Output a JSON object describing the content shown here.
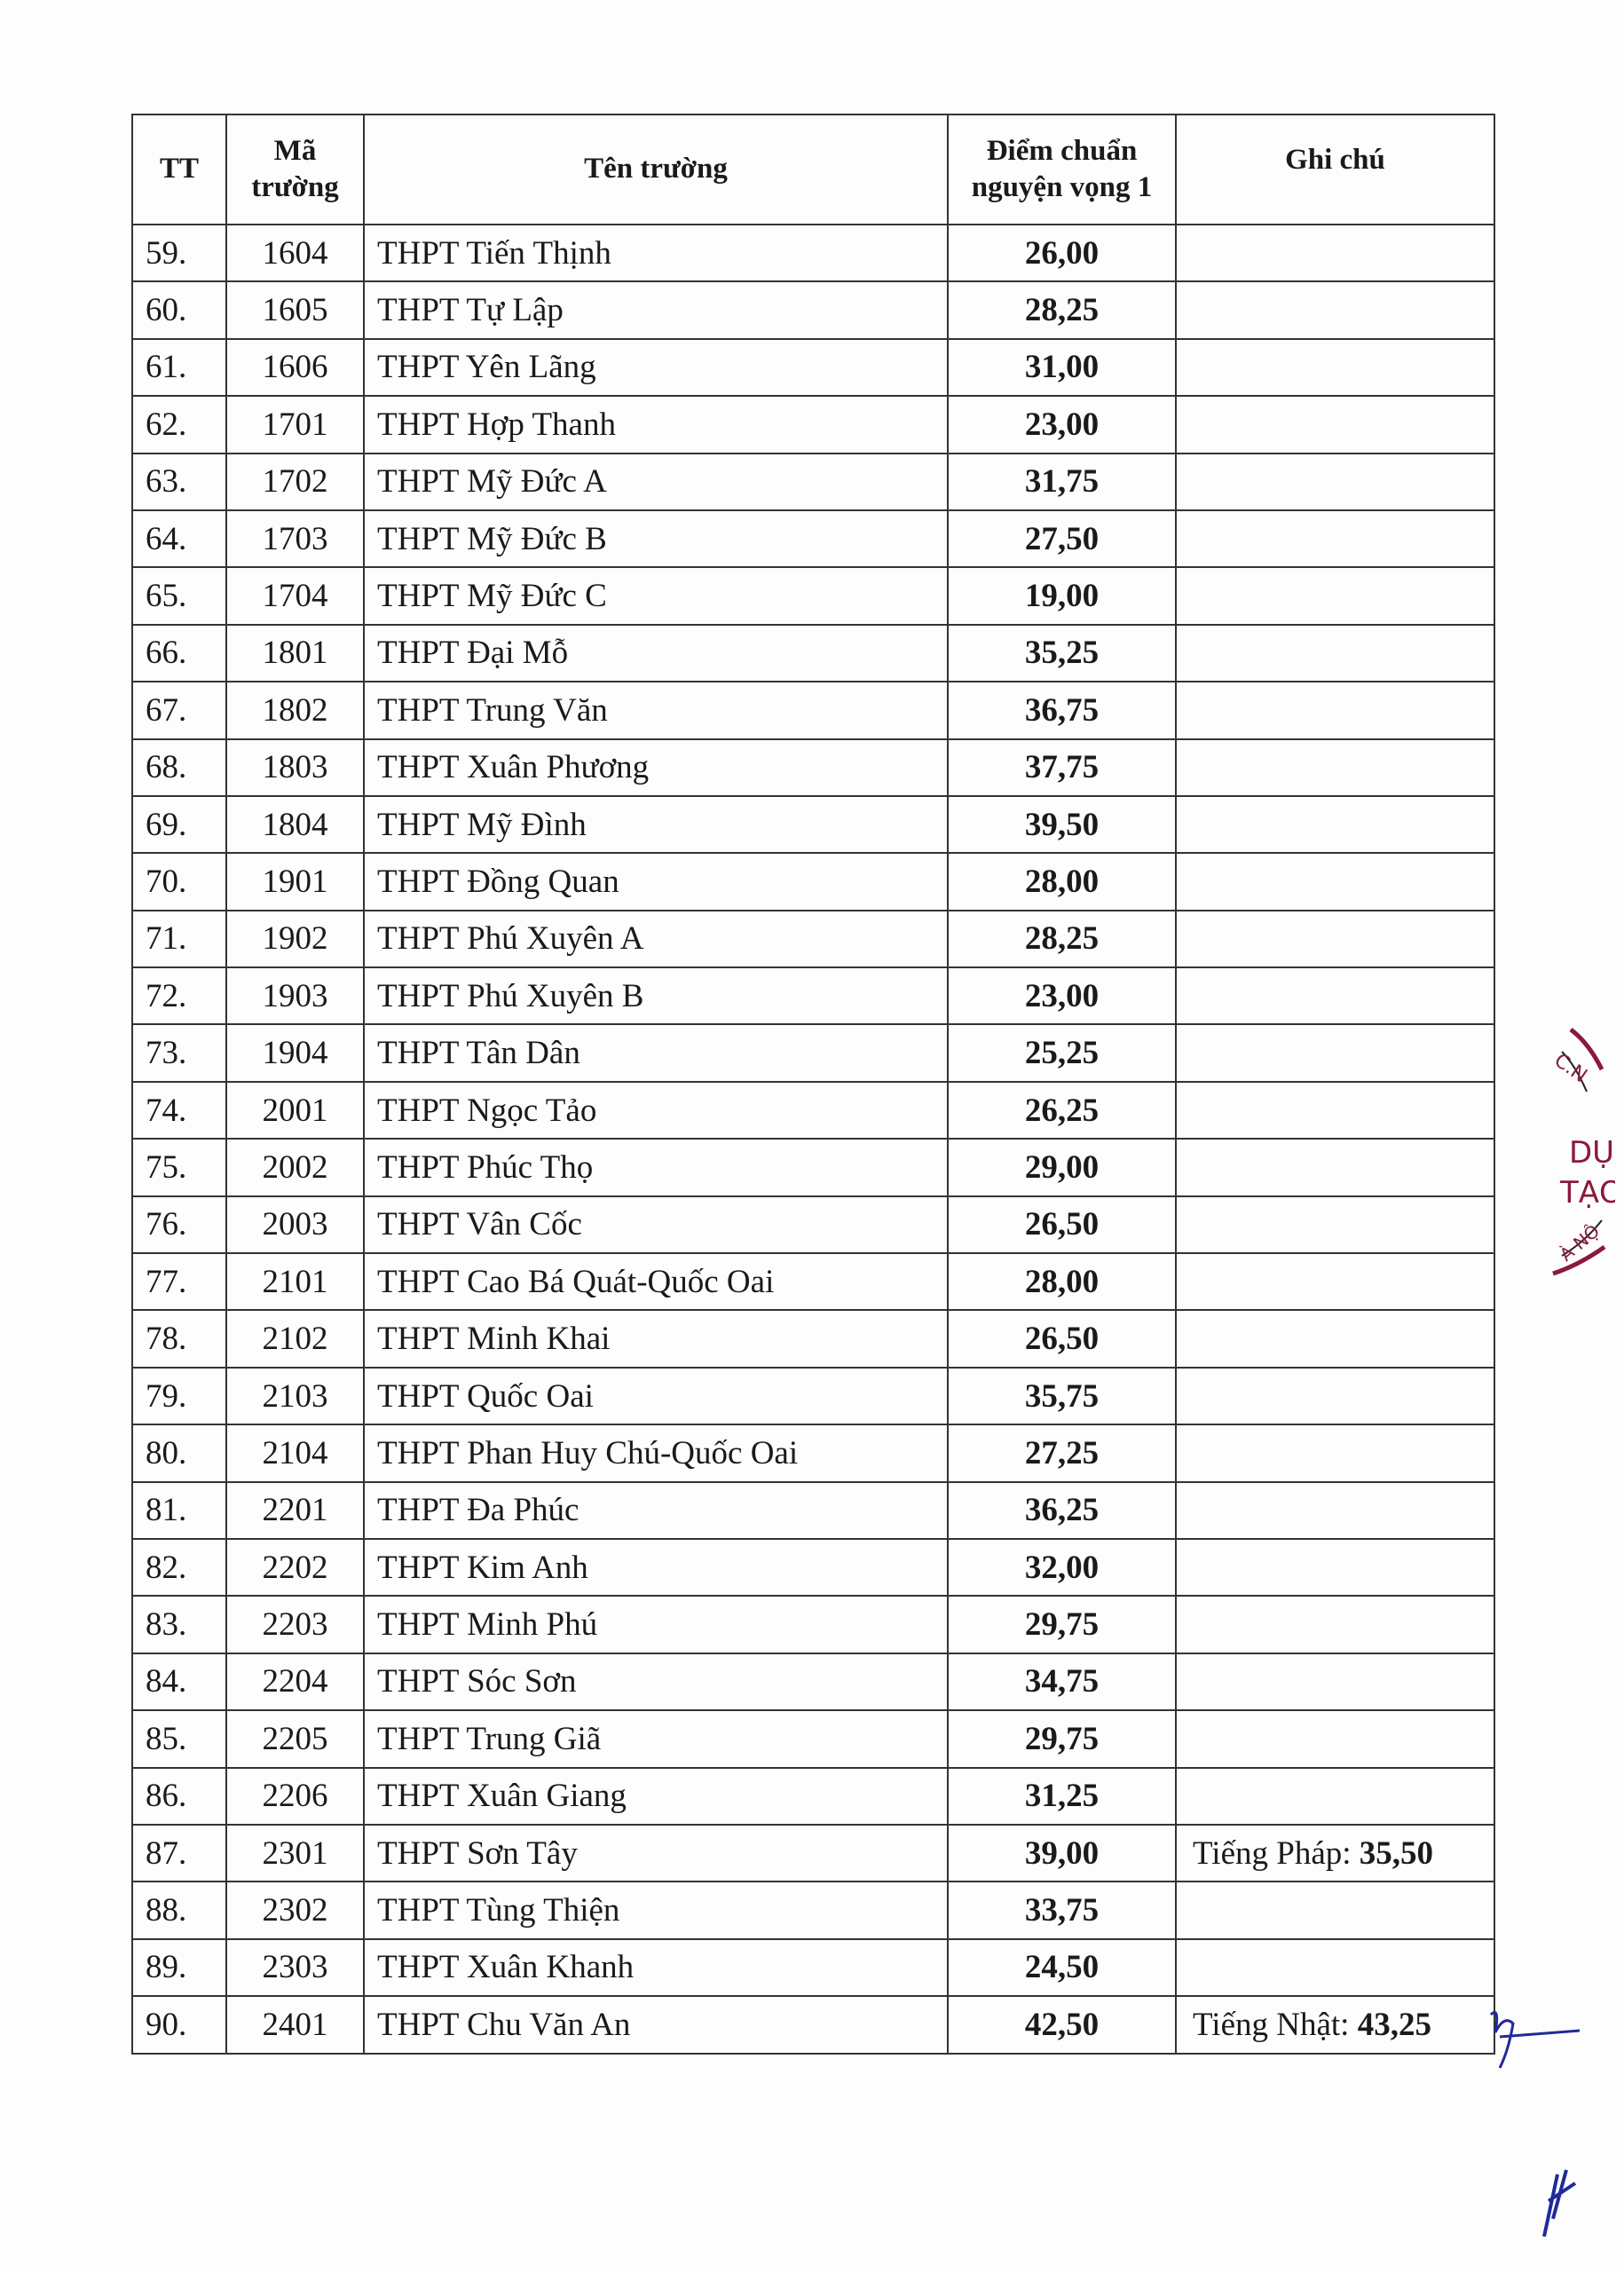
{
  "headers": {
    "tt": "TT",
    "ma": "Mã trường",
    "ten": "Tên trường",
    "diem": "Điểm chuẩn nguyện vọng 1",
    "ghi": "Ghi chú"
  },
  "rows": [
    {
      "tt": "59.",
      "ma": "1604",
      "ten": "THPT Tiến Thịnh",
      "diem": "26,00",
      "ghi": "",
      "ghi_val": ""
    },
    {
      "tt": "60.",
      "ma": "1605",
      "ten": "THPT Tự Lập",
      "diem": "28,25",
      "ghi": "",
      "ghi_val": ""
    },
    {
      "tt": "61.",
      "ma": "1606",
      "ten": "THPT Yên Lãng",
      "diem": "31,00",
      "ghi": "",
      "ghi_val": ""
    },
    {
      "tt": "62.",
      "ma": "1701",
      "ten": "THPT Hợp Thanh",
      "diem": "23,00",
      "ghi": "",
      "ghi_val": ""
    },
    {
      "tt": "63.",
      "ma": "1702",
      "ten": "THPT Mỹ Đức A",
      "diem": "31,75",
      "ghi": "",
      "ghi_val": ""
    },
    {
      "tt": "64.",
      "ma": "1703",
      "ten": "THPT Mỹ Đức B",
      "diem": "27,50",
      "ghi": "",
      "ghi_val": ""
    },
    {
      "tt": "65.",
      "ma": "1704",
      "ten": "THPT Mỹ Đức C",
      "diem": "19,00",
      "ghi": "",
      "ghi_val": ""
    },
    {
      "tt": "66.",
      "ma": "1801",
      "ten": "THPT Đại Mỗ",
      "diem": "35,25",
      "ghi": "",
      "ghi_val": ""
    },
    {
      "tt": "67.",
      "ma": "1802",
      "ten": "THPT Trung Văn",
      "diem": "36,75",
      "ghi": "",
      "ghi_val": ""
    },
    {
      "tt": "68.",
      "ma": "1803",
      "ten": "THPT Xuân Phương",
      "diem": "37,75",
      "ghi": "",
      "ghi_val": ""
    },
    {
      "tt": "69.",
      "ma": "1804",
      "ten": "THPT Mỹ Đình",
      "diem": "39,50",
      "ghi": "",
      "ghi_val": ""
    },
    {
      "tt": "70.",
      "ma": "1901",
      "ten": "THPT Đồng Quan",
      "diem": "28,00",
      "ghi": "",
      "ghi_val": ""
    },
    {
      "tt": "71.",
      "ma": "1902",
      "ten": "THPT Phú Xuyên A",
      "diem": "28,25",
      "ghi": "",
      "ghi_val": ""
    },
    {
      "tt": "72.",
      "ma": "1903",
      "ten": "THPT Phú Xuyên B",
      "diem": "23,00",
      "ghi": "",
      "ghi_val": ""
    },
    {
      "tt": "73.",
      "ma": "1904",
      "ten": "THPT Tân Dân",
      "diem": "25,25",
      "ghi": "",
      "ghi_val": ""
    },
    {
      "tt": "74.",
      "ma": "2001",
      "ten": "THPT Ngọc Tảo",
      "diem": "26,25",
      "ghi": "",
      "ghi_val": ""
    },
    {
      "tt": "75.",
      "ma": "2002",
      "ten": "THPT Phúc Thọ",
      "diem": "29,00",
      "ghi": "",
      "ghi_val": ""
    },
    {
      "tt": "76.",
      "ma": "2003",
      "ten": "THPT Vân Cốc",
      "diem": "26,50",
      "ghi": "",
      "ghi_val": ""
    },
    {
      "tt": "77.",
      "ma": "2101",
      "ten": "THPT Cao Bá Quát-Quốc Oai",
      "diem": "28,00",
      "ghi": "",
      "ghi_val": ""
    },
    {
      "tt": "78.",
      "ma": "2102",
      "ten": "THPT Minh Khai",
      "diem": "26,50",
      "ghi": "",
      "ghi_val": ""
    },
    {
      "tt": "79.",
      "ma": "2103",
      "ten": "THPT Quốc Oai",
      "diem": "35,75",
      "ghi": "",
      "ghi_val": ""
    },
    {
      "tt": "80.",
      "ma": "2104",
      "ten": "THPT Phan Huy Chú-Quốc Oai",
      "diem": "27,25",
      "ghi": "",
      "ghi_val": ""
    },
    {
      "tt": "81.",
      "ma": "2201",
      "ten": "THPT Đa Phúc",
      "diem": "36,25",
      "ghi": "",
      "ghi_val": ""
    },
    {
      "tt": "82.",
      "ma": "2202",
      "ten": "THPT Kim Anh",
      "diem": "32,00",
      "ghi": "",
      "ghi_val": ""
    },
    {
      "tt": "83.",
      "ma": "2203",
      "ten": "THPT Minh Phú",
      "diem": "29,75",
      "ghi": "",
      "ghi_val": ""
    },
    {
      "tt": "84.",
      "ma": "2204",
      "ten": "THPT Sóc Sơn",
      "diem": "34,75",
      "ghi": "",
      "ghi_val": ""
    },
    {
      "tt": "85.",
      "ma": "2205",
      "ten": "THPT Trung Giã",
      "diem": "29,75",
      "ghi": "",
      "ghi_val": ""
    },
    {
      "tt": "86.",
      "ma": "2206",
      "ten": "THPT Xuân Giang",
      "diem": "31,25",
      "ghi": "",
      "ghi_val": ""
    },
    {
      "tt": "87.",
      "ma": "2301",
      "ten": "THPT Sơn Tây",
      "diem": "39,00",
      "ghi": "Tiếng Pháp: ",
      "ghi_val": "35,50"
    },
    {
      "tt": "88.",
      "ma": "2302",
      "ten": "THPT Tùng Thiện",
      "diem": "33,75",
      "ghi": "",
      "ghi_val": ""
    },
    {
      "tt": "89.",
      "ma": "2303",
      "ten": "THPT Xuân Khanh",
      "diem": "24,50",
      "ghi": "",
      "ghi_val": ""
    },
    {
      "tt": "90.",
      "ma": "2401",
      "ten": "THPT Chu Văn An",
      "diem": "42,50",
      "ghi": "Tiếng Nhật: ",
      "ghi_val": "43,25"
    }
  ],
  "stamp": {
    "text_lines": [
      "C.N",
      "DỤC",
      "TẠO",
      "À NỘ"
    ],
    "color": "#8a1a3a"
  },
  "signature_color": "#1f2a9a"
}
